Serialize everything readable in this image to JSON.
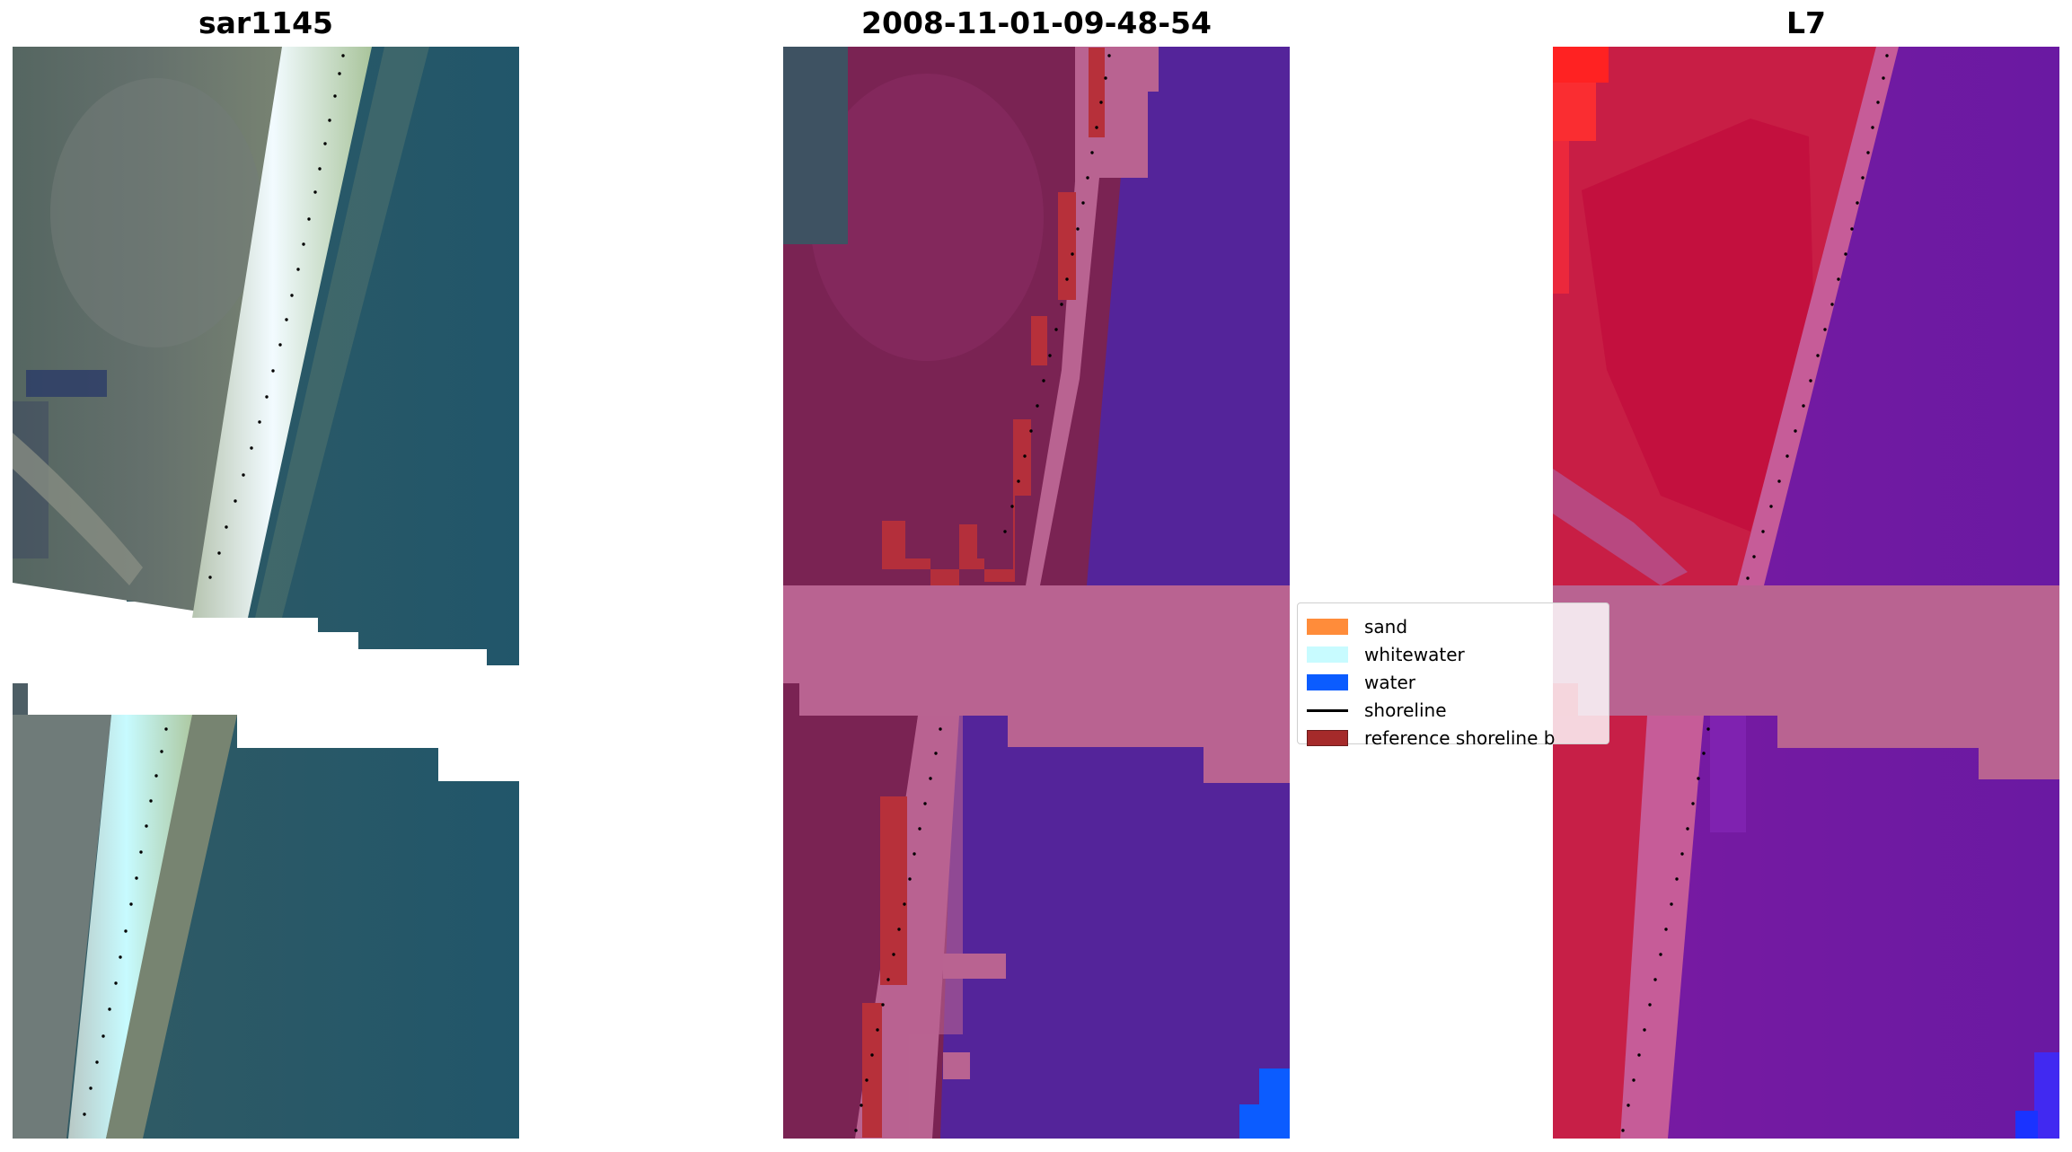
{
  "panels": {
    "left_title": "sar1145",
    "middle_title": "2008-11-01-09-48-54",
    "right_title": "L7"
  },
  "legend": {
    "items": [
      {
        "label": "sand",
        "type": "patch",
        "color": "#ff8c3a"
      },
      {
        "label": "whitewater",
        "type": "patch",
        "color": "#c8fbff"
      },
      {
        "label": "water",
        "type": "patch",
        "color": "#0b5cff"
      },
      {
        "label": "shoreline",
        "type": "line",
        "color": "#000000"
      },
      {
        "label": "reference shoreline b",
        "type": "patch",
        "color": "#a52a2a"
      }
    ]
  },
  "colors": {
    "rgb_land": "#5c6a63",
    "rgb_water": "#245567",
    "rgb_beach": "#e7f2da",
    "class_land": "#7a2353",
    "class_water": "#54249a",
    "class_buffer": "#b96391",
    "class_ref": "#b7303a",
    "class_blue": "#0b5cff",
    "l7_land": "#c81e45",
    "l7_water": "#6a19a2",
    "l7_buffer": "#b96391",
    "l7_red": "#ff2222",
    "l7_blue": "#1a33ff"
  }
}
